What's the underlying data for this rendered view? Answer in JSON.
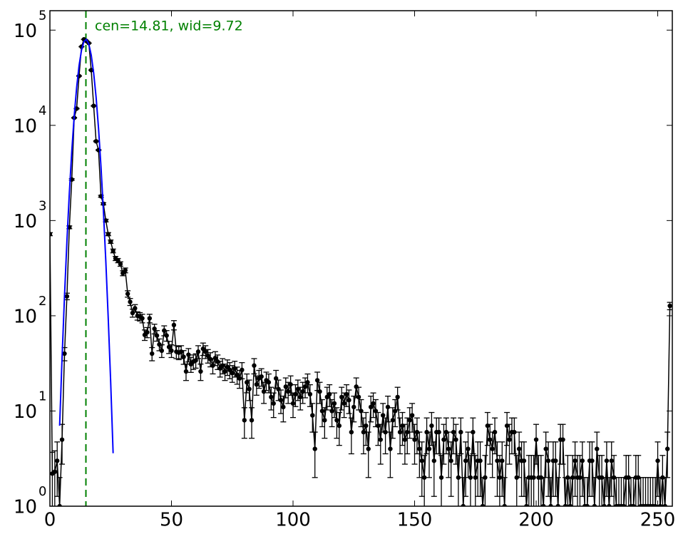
{
  "chart_data": {
    "type": "errorbar",
    "annotation": "cen=14.81, wid=9.72",
    "log_y": true,
    "error_bars": "poisson",
    "x_error": 0.5,
    "xlim": [
      0,
      256
    ],
    "ylim": [
      1,
      160000
    ],
    "xticks": [
      0,
      50,
      100,
      150,
      200,
      250
    ],
    "yticks": [
      {
        "value": 1,
        "label": "10",
        "exponent": "0"
      },
      {
        "value": 10,
        "label": "10",
        "exponent": "1"
      },
      {
        "value": 100,
        "label": "10",
        "exponent": "2"
      },
      {
        "value": 1000,
        "label": "10",
        "exponent": "3"
      },
      {
        "value": 10000,
        "label": "10",
        "exponent": "4"
      },
      {
        "value": 100000,
        "label": "10",
        "exponent": "5"
      }
    ],
    "vline": {
      "x": 14.81,
      "color": "#008000"
    },
    "series": [
      {
        "color": "#000000",
        "x": [
          0,
          1,
          2,
          3,
          4,
          5,
          6,
          7,
          8,
          9,
          10,
          11,
          12,
          13,
          14,
          15,
          16,
          17,
          18,
          19,
          20,
          21,
          22,
          23,
          24,
          25,
          26,
          27,
          28,
          29,
          30,
          31,
          32,
          33,
          34,
          35,
          36,
          37,
          38,
          39,
          40,
          41,
          42,
          43,
          44,
          45,
          46,
          47,
          48,
          49,
          50,
          51,
          52,
          53,
          54,
          55,
          56,
          57,
          58,
          59,
          60,
          61,
          62,
          63,
          64,
          65,
          66,
          67,
          68,
          69,
          70,
          71,
          72,
          73,
          74,
          75,
          76,
          77,
          78,
          79,
          80,
          81,
          82,
          83,
          84,
          85,
          86,
          87,
          88,
          89,
          90,
          91,
          92,
          93,
          94,
          95,
          96,
          97,
          98,
          99,
          100,
          101,
          102,
          103,
          104,
          105,
          106,
          107,
          108,
          109,
          110,
          111,
          112,
          113,
          114,
          115,
          116,
          117,
          118,
          119,
          120,
          121,
          122,
          123,
          124,
          125,
          126,
          127,
          128,
          129,
          130,
          131,
          132,
          133,
          134,
          135,
          136,
          137,
          138,
          139,
          140,
          141,
          142,
          143,
          144,
          145,
          146,
          147,
          148,
          149,
          150,
          151,
          152,
          153,
          154,
          155,
          156,
          157,
          158,
          159,
          160,
          161,
          162,
          163,
          164,
          165,
          166,
          167,
          168,
          169,
          170,
          171,
          172,
          173,
          174,
          175,
          176,
          177,
          178,
          179,
          180,
          181,
          182,
          183,
          184,
          185,
          186,
          187,
          188,
          189,
          190,
          191,
          192,
          193,
          194,
          195,
          196,
          197,
          198,
          199,
          200,
          201,
          202,
          203,
          204,
          205,
          206,
          207,
          208,
          209,
          210,
          211,
          212,
          213,
          214,
          215,
          216,
          217,
          218,
          219,
          220,
          221,
          222,
          223,
          224,
          225,
          226,
          227,
          228,
          229,
          230,
          231,
          232,
          233,
          234,
          235,
          236,
          237,
          238,
          239,
          240,
          241,
          242,
          243,
          244,
          245,
          246,
          247,
          248,
          249,
          250,
          251,
          252,
          253,
          254,
          255
        ],
        "values": [
          720,
          2.2,
          2.3,
          3,
          1,
          5,
          40,
          160,
          850,
          2700,
          12000,
          15000,
          33000,
          67000,
          80000,
          77000,
          73000,
          38000,
          16000,
          6800,
          5500,
          1800,
          1500,
          1000,
          720,
          600,
          480,
          400,
          380,
          350,
          280,
          300,
          170,
          140,
          107,
          120,
          100,
          98,
          94,
          63,
          67,
          94,
          40,
          73,
          62,
          50,
          43,
          70,
          62,
          47,
          43,
          80,
          42,
          41,
          42,
          37,
          26,
          39,
          31,
          33,
          34,
          42,
          26,
          45,
          42,
          38,
          35,
          30,
          36,
          33,
          28,
          30,
          26,
          29,
          27,
          25,
          28,
          24,
          22,
          27,
          8,
          20,
          17,
          8,
          30,
          19,
          22,
          23,
          16,
          21,
          20,
          14,
          12,
          22,
          17,
          13,
          11,
          18,
          16,
          19,
          12,
          15,
          17,
          14,
          16,
          18,
          20,
          15,
          9,
          4,
          21,
          16,
          10,
          8,
          14,
          15,
          10,
          12,
          8,
          7,
          14,
          12,
          15,
          13,
          6,
          11,
          18,
          14,
          10,
          6,
          7,
          4,
          11,
          12,
          10,
          7,
          5,
          9,
          6,
          11,
          4,
          8,
          10,
          14,
          6,
          7,
          5,
          6,
          8,
          9,
          5,
          6,
          4,
          3,
          2,
          6,
          4,
          7,
          3,
          6,
          6,
          2,
          5,
          6,
          4,
          3,
          6,
          5,
          2,
          6,
          1,
          3,
          4,
          2,
          6,
          2,
          3,
          3,
          1,
          2,
          7,
          5,
          4,
          6,
          3,
          2,
          3,
          1,
          7,
          5,
          6,
          6,
          2,
          4,
          3,
          3,
          1,
          2,
          2,
          2,
          5,
          2,
          2,
          1,
          4,
          3,
          1,
          3,
          3,
          1,
          5,
          5,
          1,
          2,
          1,
          2,
          3,
          2,
          2,
          3,
          1,
          1,
          3,
          3,
          1,
          4,
          2,
          2,
          1,
          3,
          1,
          3,
          2,
          1,
          1,
          1,
          1,
          2,
          2,
          1,
          1,
          2,
          2,
          1,
          1,
          1,
          1,
          1,
          1,
          1,
          3,
          1,
          2,
          1,
          4,
          127
        ]
      },
      {
        "color": "#0000ff",
        "x": [
          4,
          5,
          6,
          7,
          8,
          9,
          10,
          11,
          12,
          13,
          14,
          15,
          16,
          17,
          18,
          19,
          20,
          21,
          22,
          23,
          24,
          25,
          26
        ],
        "values": [
          7,
          36,
          160,
          607,
          1960,
          5370,
          12600,
          25000,
          42500,
          61600,
          75900,
          80000,
          71400,
          54500,
          35400,
          19700,
          9300,
          3700,
          1270,
          373,
          93,
          20,
          3.6
        ]
      }
    ]
  }
}
